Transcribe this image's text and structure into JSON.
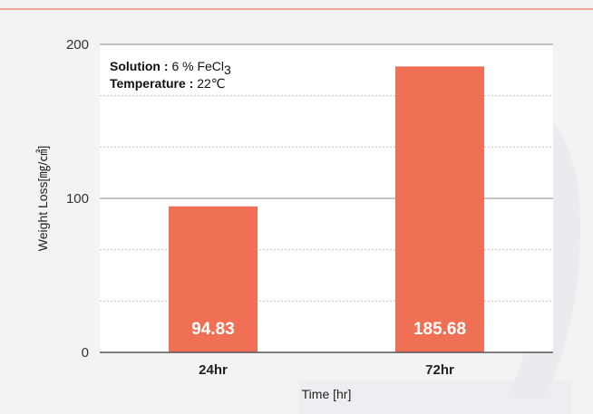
{
  "chart_data": {
    "type": "bar",
    "categories": [
      "24hr",
      "72hr"
    ],
    "values": [
      94.83,
      185.68
    ],
    "data_labels": [
      "94.83",
      "185.68"
    ],
    "xlabel": "Time [hr]",
    "ylabel": "Weight Loss[㎎/㎠]",
    "ylim": [
      0,
      200
    ],
    "yticks": [
      0,
      100,
      200
    ],
    "gridlines": [
      0,
      33.3,
      66.7,
      100,
      133.3,
      166.7,
      200
    ],
    "grid": true,
    "bar_color": "#f07055",
    "annotations": [
      {
        "key": "Solution : ",
        "value": "6 % FeCl",
        "subscript": "3"
      },
      {
        "key": "Temperature : ",
        "value": "22℃",
        "subscript": ""
      }
    ]
  }
}
